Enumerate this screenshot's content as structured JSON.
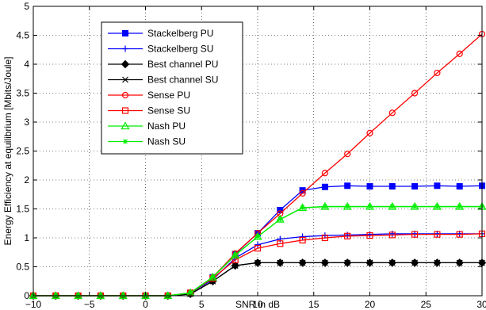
{
  "chart_data": {
    "type": "line",
    "title": "",
    "xlabel": "SNR in dB",
    "ylabel": "Energy Efficiency at equilibrium [Mbits/Joule]",
    "xlim": [
      -10,
      30
    ],
    "ylim": [
      0,
      5
    ],
    "xticks": [
      -10,
      -5,
      0,
      5,
      10,
      15,
      20,
      25,
      30
    ],
    "xtick_labels": [
      "−10",
      "−5",
      "0",
      "5",
      "10",
      "15",
      "20",
      "25",
      "30"
    ],
    "yticks": [
      0,
      0.5,
      1,
      1.5,
      2,
      2.5,
      3,
      3.5,
      4,
      4.5,
      5
    ],
    "ytick_labels": [
      "0",
      "0.5",
      "1",
      "1.5",
      "2",
      "2.5",
      "3",
      "3.5",
      "4",
      "4.5",
      "5"
    ],
    "grid": true,
    "legend_position": "top-left",
    "x": [
      -10,
      -8,
      -6,
      -4,
      -2,
      0,
      2,
      4,
      6,
      8,
      10,
      12,
      14,
      16,
      18,
      20,
      22,
      24,
      26,
      28,
      30
    ],
    "series": [
      {
        "name": "Stackelberg PU",
        "color": "#0000ff",
        "marker": "square",
        "values": [
          0,
          0,
          0,
          0,
          0,
          0,
          0,
          0.05,
          0.32,
          0.72,
          1.08,
          1.48,
          1.82,
          1.88,
          1.9,
          1.89,
          1.89,
          1.89,
          1.9,
          1.89,
          1.9
        ]
      },
      {
        "name": "Stackelberg SU",
        "color": "#0000ff",
        "marker": "plus",
        "values": [
          0,
          0,
          0,
          0,
          0,
          0,
          0,
          0.05,
          0.28,
          0.65,
          0.88,
          0.98,
          1.02,
          1.04,
          1.05,
          1.06,
          1.07,
          1.07,
          1.07,
          1.07,
          1.07
        ]
      },
      {
        "name": "Best channel PU",
        "color": "#000000",
        "marker": "diamond",
        "values": [
          0,
          0,
          0,
          0,
          0,
          0,
          0,
          0.03,
          0.25,
          0.52,
          0.57,
          0.57,
          0.57,
          0.57,
          0.57,
          0.57,
          0.57,
          0.57,
          0.57,
          0.57,
          0.57
        ]
      },
      {
        "name": "Best channel SU",
        "color": "#000000",
        "marker": "x",
        "values": [
          0,
          0,
          0,
          0,
          0,
          0,
          0,
          0.03,
          0.25,
          0.52,
          0.57,
          0.57,
          0.57,
          0.57,
          0.57,
          0.57,
          0.57,
          0.57,
          0.57,
          0.57,
          0.57
        ]
      },
      {
        "name": "Sense PU",
        "color": "#ff0000",
        "marker": "circle",
        "values": [
          0,
          0,
          0,
          0,
          0,
          0,
          0,
          0.05,
          0.32,
          0.73,
          1.08,
          1.42,
          1.77,
          2.12,
          2.45,
          2.81,
          3.16,
          3.5,
          3.85,
          4.18,
          4.52
        ]
      },
      {
        "name": "Sense SU",
        "color": "#ff0000",
        "marker": "square-open",
        "values": [
          0,
          0,
          0,
          0,
          0,
          0,
          0,
          0.05,
          0.3,
          0.62,
          0.82,
          0.9,
          0.96,
          1.0,
          1.03,
          1.04,
          1.05,
          1.06,
          1.06,
          1.06,
          1.07
        ]
      },
      {
        "name": "Nash PU",
        "color": "#00ee00",
        "marker": "triangle",
        "values": [
          0,
          0,
          0,
          0,
          0,
          0,
          0,
          0.05,
          0.32,
          0.7,
          1.02,
          1.32,
          1.52,
          1.54,
          1.54,
          1.54,
          1.54,
          1.54,
          1.54,
          1.54,
          1.54
        ]
      },
      {
        "name": "Nash SU",
        "color": "#00ee00",
        "marker": "star",
        "values": [
          0,
          0,
          0,
          0,
          0,
          0,
          0,
          0.05,
          0.32,
          0.7,
          1.02,
          1.32,
          1.52,
          1.54,
          1.54,
          1.54,
          1.54,
          1.54,
          1.54,
          1.54,
          1.54
        ]
      }
    ]
  }
}
